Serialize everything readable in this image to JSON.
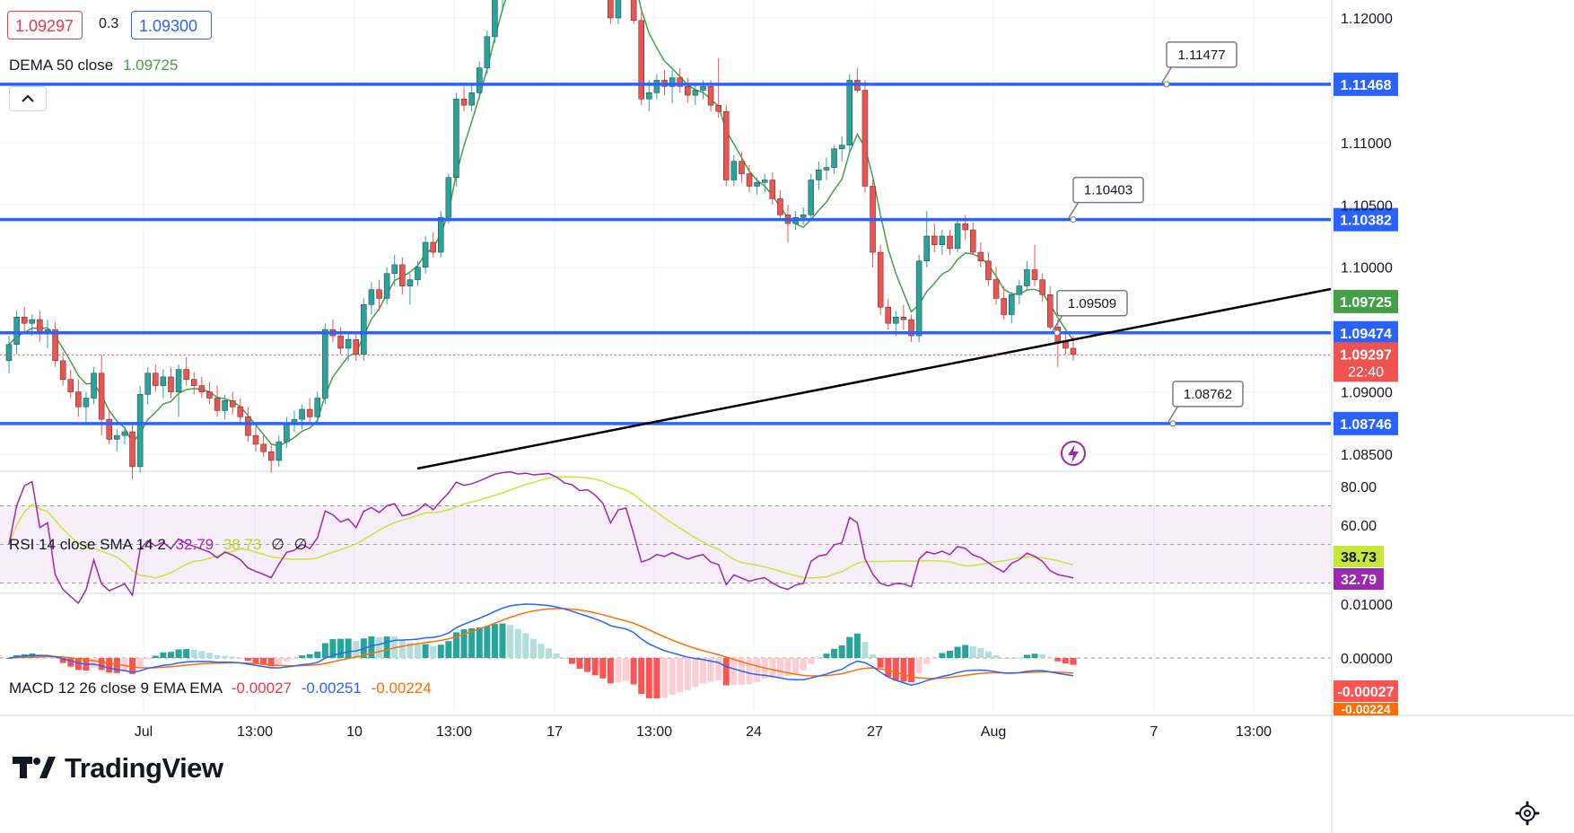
{
  "header": {
    "bid": "1.09297",
    "spread": "0.3",
    "ask": "1.09300",
    "dema_label": "DEMA 50 close",
    "dema_value": "1.09725"
  },
  "rsi_header": {
    "label": "RSI 14 close SMA 14 2",
    "rsi": "32.79",
    "sma": "38.73",
    "extra1": "∅",
    "extra2": "∅"
  },
  "macd_header": {
    "label": "MACD 12 26 close 9 EMA EMA",
    "hist": "-0.00027",
    "macd": "-0.00251",
    "signal": "-0.00224"
  },
  "logo": {
    "text": "TradingView"
  },
  "colors": {
    "up": "#26a69a",
    "down": "#ef5350",
    "level": "#2962ff",
    "dema": "#43a047",
    "rsi": "#9c27b0",
    "rsi_sma": "#c8e639",
    "macd": "#2962ff",
    "signal": "#ff6d00",
    "trend": "#000000"
  },
  "chart_data": [
    {
      "type": "candlestick",
      "symbol_pane": "price",
      "ylim": [
        1.0825,
        1.1225
      ],
      "price_ticks": [
        "1.12000",
        "1.11000",
        "1.10500",
        "1.10000",
        "1.09000",
        "1.08500"
      ],
      "x_labels": [
        "Jul",
        "13:00",
        "10",
        "13:00",
        "17",
        "13:00",
        "24",
        "27",
        "Aug",
        "7",
        "13:00"
      ],
      "current_price": "1.09297",
      "countdown": "22:40",
      "dema_last": "1.09725",
      "levels": [
        {
          "price": 1.11468,
          "label": "1.11468",
          "callout": "1.11477"
        },
        {
          "price": 1.10382,
          "label": "1.10382",
          "callout": "1.10403"
        },
        {
          "price": 1.09474,
          "label": "1.09474",
          "callout": "1.09509"
        },
        {
          "price": 1.08746,
          "label": "1.08746",
          "callout": "1.08762"
        }
      ],
      "trendline": [
        [
          1.0825,
          1.0979
        ]
      ],
      "candles": [
        [
          1.0925,
          1.0945,
          1.0915,
          1.0938
        ],
        [
          1.0938,
          1.0965,
          1.093,
          1.096
        ],
        [
          1.096,
          1.0968,
          1.0948,
          1.0955
        ],
        [
          1.0955,
          1.0962,
          1.0945,
          1.0958
        ],
        [
          1.0958,
          1.0965,
          1.094,
          1.0948
        ],
        [
          1.0948,
          1.0958,
          1.0935,
          1.095
        ],
        [
          1.095,
          1.0956,
          1.092,
          1.0925
        ],
        [
          1.0925,
          1.0932,
          1.0905,
          1.091
        ],
        [
          1.091,
          1.0918,
          1.0895,
          1.09
        ],
        [
          1.09,
          1.091,
          1.088,
          1.0888
        ],
        [
          1.0888,
          1.09,
          1.0875,
          1.0895
        ],
        [
          1.0895,
          1.092,
          1.089,
          1.0915
        ],
        [
          1.0915,
          1.093,
          1.0865,
          1.0878
        ],
        [
          1.0878,
          1.0885,
          1.0858,
          1.0862
        ],
        [
          1.0862,
          1.087,
          1.0852,
          1.0865
        ],
        [
          1.0865,
          1.0872,
          1.0858,
          1.0868
        ],
        [
          1.0868,
          1.0875,
          1.083,
          1.084
        ],
        [
          1.084,
          1.0905,
          1.0835,
          1.0898
        ],
        [
          1.0898,
          1.092,
          1.089,
          1.0915
        ],
        [
          1.0915,
          1.0922,
          1.09,
          1.0905
        ],
        [
          1.0905,
          1.0918,
          1.0895,
          1.0912
        ],
        [
          1.0912,
          1.092,
          1.0895,
          1.09
        ],
        [
          1.09,
          1.0922,
          1.088,
          1.0918
        ],
        [
          1.0918,
          1.0928,
          1.0905,
          1.091
        ],
        [
          1.091,
          1.0916,
          1.0898,
          1.0905
        ],
        [
          1.0905,
          1.0912,
          1.0895,
          1.09
        ],
        [
          1.09,
          1.0908,
          1.089,
          1.0895
        ],
        [
          1.0895,
          1.0905,
          1.088,
          1.0885
        ],
        [
          1.0885,
          1.0898,
          1.0878,
          1.0893
        ],
        [
          1.0893,
          1.09,
          1.0882,
          1.0888
        ],
        [
          1.0888,
          1.0895,
          1.0875,
          1.088
        ],
        [
          1.088,
          1.0888,
          1.086,
          1.0865
        ],
        [
          1.0865,
          1.0872,
          1.0852,
          1.0858
        ],
        [
          1.0858,
          1.0865,
          1.0848,
          1.0852
        ],
        [
          1.0852,
          1.0858,
          1.0835,
          1.0845
        ],
        [
          1.0845,
          1.0865,
          1.084,
          1.086
        ],
        [
          1.086,
          1.088,
          1.0855,
          1.0875
        ],
        [
          1.0875,
          1.0885,
          1.0868,
          1.0878
        ],
        [
          1.0878,
          1.089,
          1.087,
          1.0886
        ],
        [
          1.0886,
          1.0895,
          1.0875,
          1.088
        ],
        [
          1.088,
          1.09,
          1.0875,
          1.0895
        ],
        [
          1.0895,
          1.0955,
          1.089,
          1.095
        ],
        [
          1.095,
          1.0958,
          1.094,
          1.0945
        ],
        [
          1.0945,
          1.0952,
          1.093,
          1.0935
        ],
        [
          1.0935,
          1.0948,
          1.0925,
          1.0942
        ],
        [
          1.0942,
          1.0946,
          1.0925,
          1.093
        ],
        [
          1.093,
          1.0975,
          1.0925,
          1.097
        ],
        [
          1.097,
          1.0988,
          1.0962,
          1.0982
        ],
        [
          1.0982,
          1.099,
          1.0965,
          1.0975
        ],
        [
          1.0975,
          1.1,
          1.097,
          1.0995
        ],
        [
          1.0995,
          1.101,
          1.0985,
          1.1002
        ],
        [
          1.1002,
          1.1008,
          1.0978,
          1.0985
        ],
        [
          1.0985,
          1.0995,
          1.097,
          1.099
        ],
        [
          1.099,
          1.1005,
          1.0985,
          1.1
        ],
        [
          1.1,
          1.1025,
          1.0995,
          1.102
        ],
        [
          1.102,
          1.1028,
          1.1008,
          1.1012
        ],
        [
          1.1012,
          1.1045,
          1.1008,
          1.104
        ],
        [
          1.104,
          1.1075,
          1.1035,
          1.1072
        ],
        [
          1.1072,
          1.114,
          1.1065,
          1.1135
        ],
        [
          1.1135,
          1.1145,
          1.1125,
          1.113
        ],
        [
          1.113,
          1.1148,
          1.1125,
          1.114
        ],
        [
          1.114,
          1.1165,
          1.1135,
          1.116
        ],
        [
          1.116,
          1.119,
          1.1155,
          1.1185
        ],
        [
          1.1185,
          1.122,
          1.118,
          1.1215
        ],
        [
          1.1215,
          1.124,
          1.1205,
          1.123
        ],
        [
          1.123,
          1.1245,
          1.122,
          1.1238
        ],
        [
          1.1238,
          1.125,
          1.1225,
          1.1235
        ],
        [
          1.1235,
          1.1248,
          1.1228,
          1.1242
        ],
        [
          1.1242,
          1.1255,
          1.1235,
          1.124
        ],
        [
          1.124,
          1.1252,
          1.123,
          1.1245
        ],
        [
          1.1245,
          1.1258,
          1.1238,
          1.125
        ],
        [
          1.125,
          1.1262,
          1.124,
          1.1246
        ],
        [
          1.1246,
          1.1255,
          1.1235,
          1.124
        ],
        [
          1.124,
          1.125,
          1.123,
          1.1238
        ],
        [
          1.1238,
          1.1245,
          1.1225,
          1.1232
        ],
        [
          1.1232,
          1.124,
          1.1222,
          1.1235
        ],
        [
          1.1235,
          1.1242,
          1.1225,
          1.123
        ],
        [
          1.123,
          1.1238,
          1.1215,
          1.1222
        ],
        [
          1.1222,
          1.123,
          1.1195,
          1.12
        ],
        [
          1.12,
          1.1235,
          1.1195,
          1.123
        ],
        [
          1.123,
          1.124,
          1.122,
          1.1235
        ],
        [
          1.1235,
          1.124,
          1.1195,
          1.1198
        ],
        [
          1.1198,
          1.1205,
          1.113,
          1.1135
        ],
        [
          1.1135,
          1.115,
          1.1125,
          1.114
        ],
        [
          1.114,
          1.1155,
          1.1135,
          1.115
        ],
        [
          1.115,
          1.1158,
          1.1138,
          1.1145
        ],
        [
          1.1145,
          1.1158,
          1.1132,
          1.1152
        ],
        [
          1.1152,
          1.116,
          1.114,
          1.1145
        ],
        [
          1.1145,
          1.1152,
          1.1132,
          1.1138
        ],
        [
          1.1138,
          1.1148,
          1.113,
          1.1142
        ],
        [
          1.1142,
          1.115,
          1.1135,
          1.1145
        ],
        [
          1.1145,
          1.115,
          1.1125,
          1.113
        ],
        [
          1.113,
          1.1168,
          1.112,
          1.1125
        ],
        [
          1.1125,
          1.113,
          1.1065,
          1.107
        ],
        [
          1.107,
          1.109,
          1.1065,
          1.1085
        ],
        [
          1.1085,
          1.1092,
          1.1068,
          1.1075
        ],
        [
          1.1075,
          1.1082,
          1.106,
          1.1065
        ],
        [
          1.1065,
          1.1072,
          1.1058,
          1.1068
        ],
        [
          1.1068,
          1.1075,
          1.106,
          1.107
        ],
        [
          1.107,
          1.1076,
          1.105,
          1.1055
        ],
        [
          1.1055,
          1.1062,
          1.1038,
          1.1042
        ],
        [
          1.1042,
          1.105,
          1.102,
          1.1035
        ],
        [
          1.1035,
          1.1045,
          1.103,
          1.104
        ],
        [
          1.104,
          1.1048,
          1.1034,
          1.1042
        ],
        [
          1.1042,
          1.1075,
          1.1038,
          1.107
        ],
        [
          1.107,
          1.1085,
          1.1062,
          1.1078
        ],
        [
          1.1078,
          1.1088,
          1.107,
          1.108
        ],
        [
          1.108,
          1.1098,
          1.1075,
          1.1095
        ],
        [
          1.1095,
          1.1105,
          1.1085,
          1.1098
        ],
        [
          1.1098,
          1.1155,
          1.1092,
          1.115
        ],
        [
          1.115,
          1.116,
          1.114,
          1.1142
        ],
        [
          1.1142,
          1.115,
          1.106,
          1.1065
        ],
        [
          1.1065,
          1.107,
          1.1,
          1.1012
        ],
        [
          1.1012,
          1.1018,
          1.0962,
          1.0968
        ],
        [
          1.0968,
          1.0975,
          1.095,
          1.0955
        ],
        [
          1.0955,
          1.0965,
          1.0945,
          1.096
        ],
        [
          1.096,
          1.097,
          1.095,
          1.0958
        ],
        [
          1.0958,
          1.0962,
          1.094,
          1.0945
        ],
        [
          1.0945,
          1.101,
          1.094,
          1.1005
        ],
        [
          1.1005,
          1.1045,
          1.1,
          1.1025
        ],
        [
          1.1025,
          1.1035,
          1.1012,
          1.1018
        ],
        [
          1.1018,
          1.103,
          1.101,
          1.1025
        ],
        [
          1.1025,
          1.103,
          1.101,
          1.1015
        ],
        [
          1.1015,
          1.1038,
          1.1012,
          1.1035
        ],
        [
          1.1035,
          1.1042,
          1.1022,
          1.103
        ],
        [
          1.103,
          1.1036,
          1.101,
          1.1012
        ],
        [
          1.1012,
          1.102,
          1.1,
          1.1005
        ],
        [
          1.1005,
          1.1012,
          1.0985,
          1.099
        ],
        [
          1.099,
          1.1,
          1.097,
          1.0975
        ],
        [
          1.0975,
          1.0985,
          1.0958,
          1.0962
        ],
        [
          1.0962,
          1.098,
          1.0955,
          1.0978
        ],
        [
          1.0978,
          1.099,
          1.097,
          1.0985
        ],
        [
          1.0985,
          1.1005,
          1.0982,
          1.0998
        ],
        [
          1.0998,
          1.1018,
          1.0985,
          1.099
        ],
        [
          1.099,
          1.0995,
          1.0972,
          1.0978
        ],
        [
          1.0978,
          1.0985,
          1.095,
          1.0952
        ],
        [
          1.0952,
          1.0958,
          1.092,
          1.094
        ],
        [
          1.094,
          1.0948,
          1.093,
          1.0935
        ],
        [
          1.0935,
          1.0945,
          1.0925,
          1.093
        ]
      ]
    },
    {
      "type": "line",
      "pane": "RSI",
      "ylim": [
        20,
        85
      ],
      "ticks": [
        "80.00",
        "60.00"
      ],
      "band": [
        30,
        70
      ],
      "rsi_last": "32.79",
      "sma_last": "38.73"
    },
    {
      "type": "bar",
      "pane": "MACD",
      "ylim": [
        -0.003,
        0.0125
      ],
      "ticks": [
        "0.01000",
        "0.00000"
      ],
      "hist_last": "-0.00027",
      "signal_last": "-0.00224"
    }
  ]
}
